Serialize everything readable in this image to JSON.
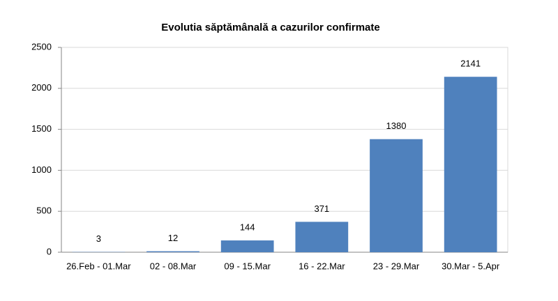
{
  "chart_data": {
    "type": "bar",
    "title": "Evolutia săptămânală a cazurilor confirmate",
    "categories": [
      "26.Feb - 01.Mar",
      "02 - 08.Mar",
      "09 - 15.Mar",
      "16 - 22.Mar",
      "23 - 29.Mar",
      "30.Mar - 5.Apr"
    ],
    "values": [
      3,
      12,
      144,
      371,
      1380,
      2141
    ],
    "color": "#4f81bd",
    "ylim": [
      0,
      2500
    ],
    "yticks": [
      0,
      500,
      1000,
      1500,
      2000,
      2500
    ],
    "grid": true
  }
}
